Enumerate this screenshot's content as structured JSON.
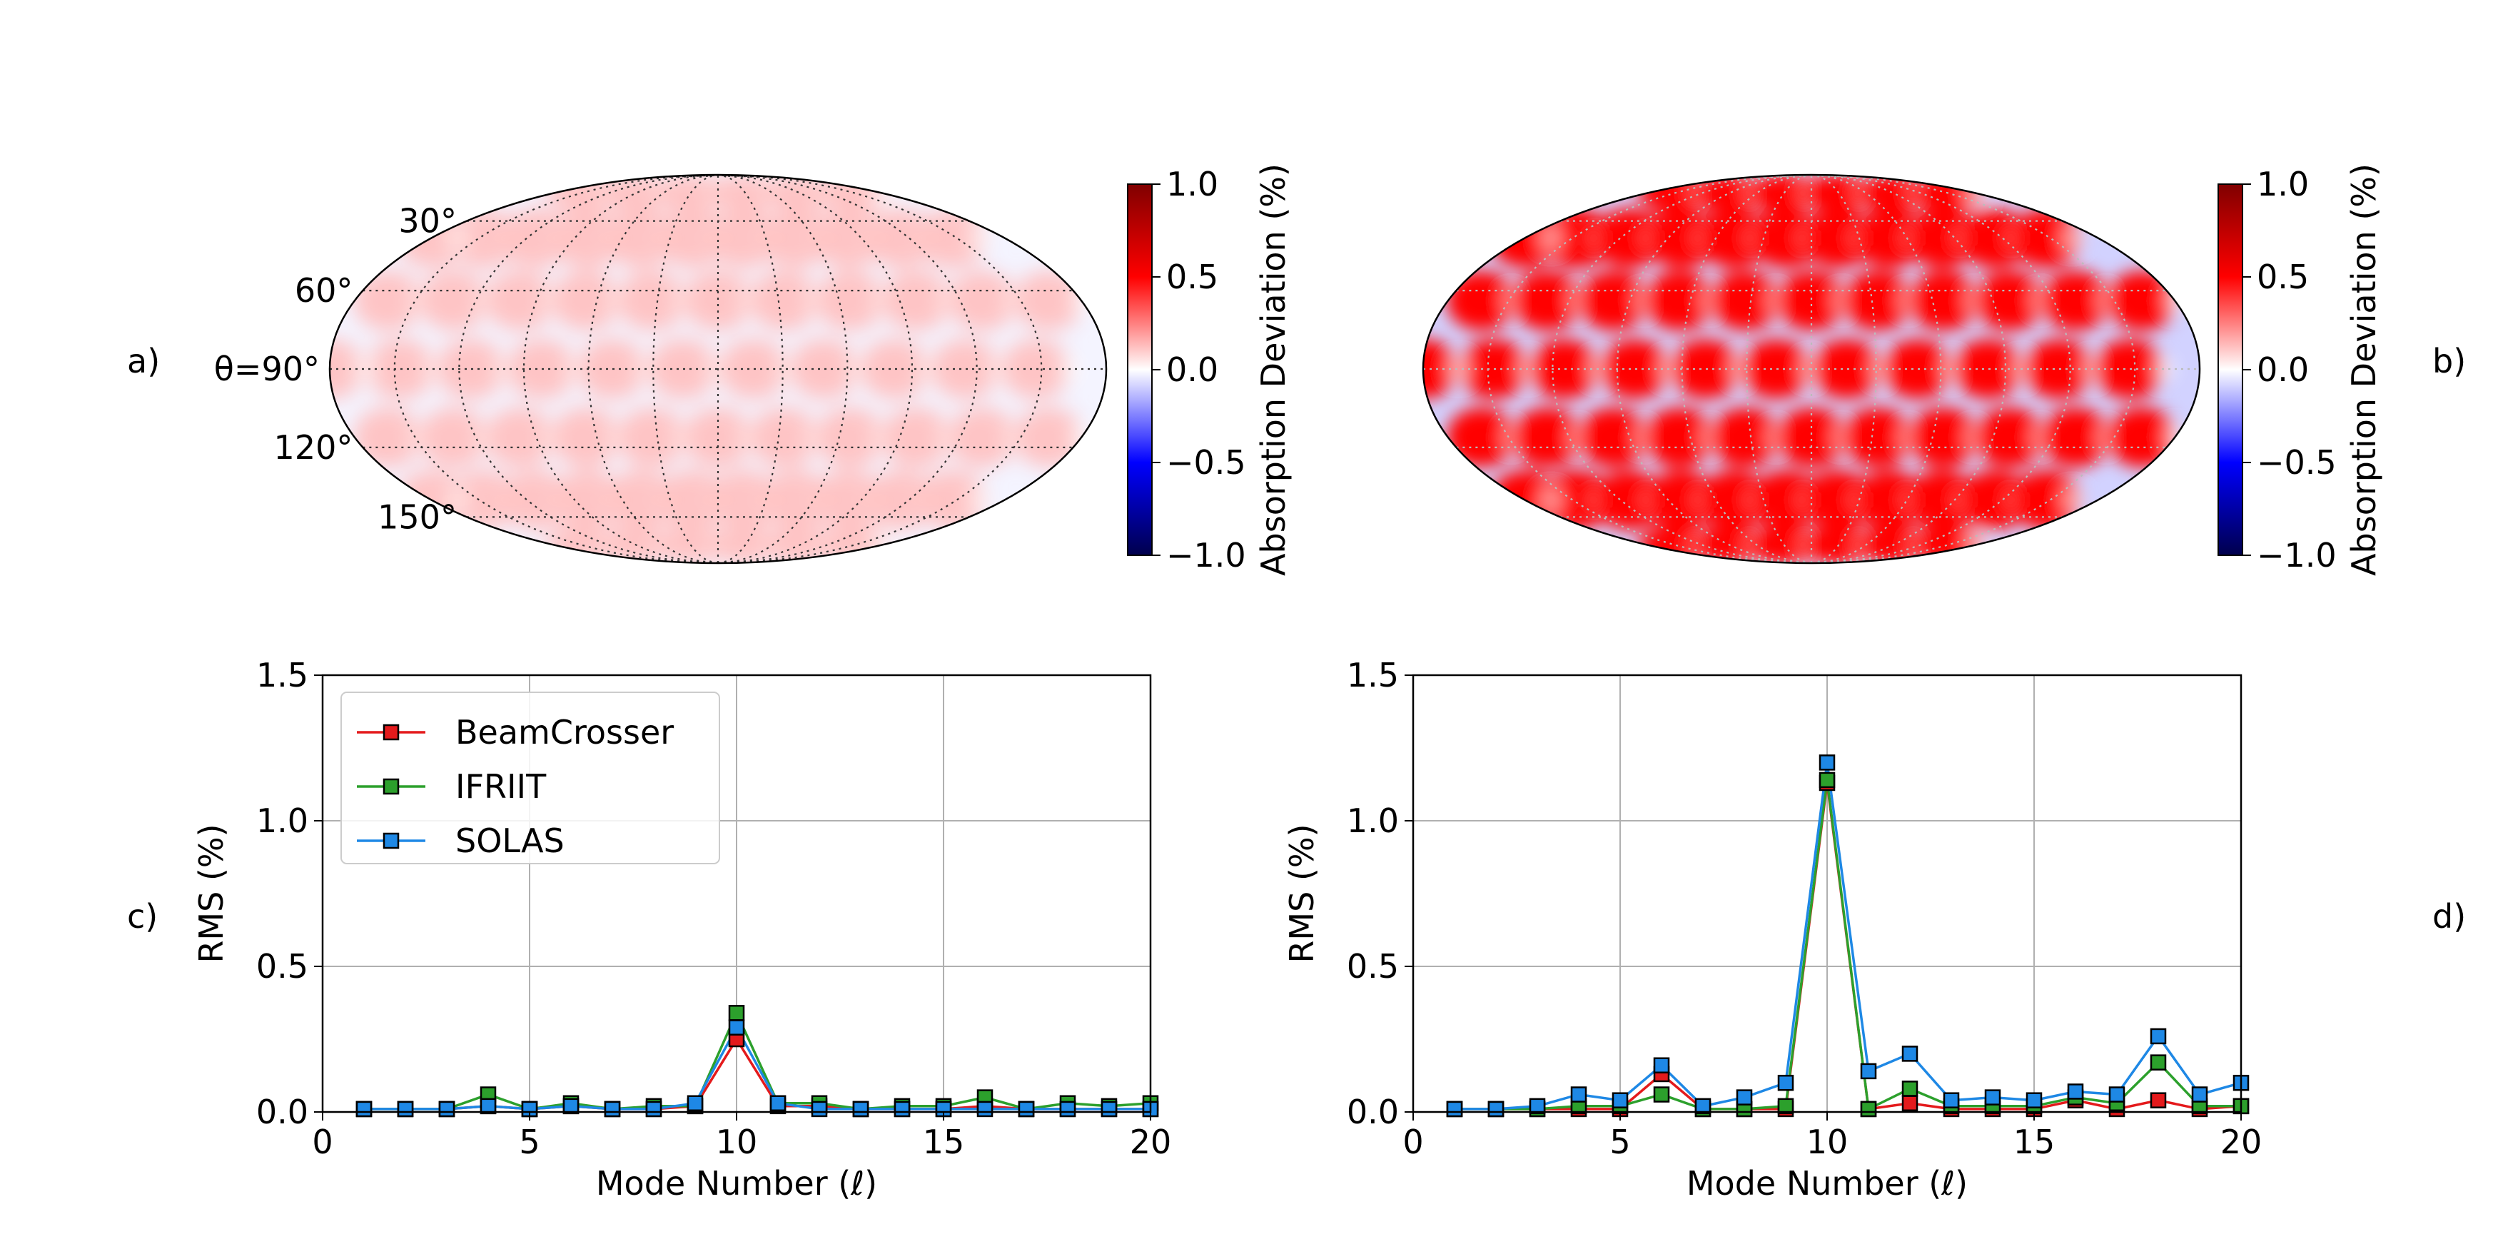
{
  "figure": {
    "panel_labels": [
      "a)",
      "b)",
      "c)",
      "d)"
    ]
  },
  "chart_data": [
    {
      "panel": "a)",
      "type": "heatmap",
      "projection": "mollweide",
      "latitude_labels": [
        "30°",
        "60°",
        "θ=90°",
        "120°",
        "150°"
      ],
      "colorbar": {
        "label": "Absorption Deviation (%)",
        "range": [
          -1.0,
          1.0
        ],
        "ticks": [
          1.0,
          0.5,
          0.0,
          -0.5,
          -1.0
        ],
        "tick_labels": [
          "1.0",
          "0.5",
          "0.0",
          "−0.5",
          "−1.0"
        ],
        "colormap": "seismic"
      },
      "amplitude": 0.25,
      "grid": true
    },
    {
      "panel": "b)",
      "type": "heatmap",
      "projection": "mollweide",
      "latitude_labels": [],
      "colorbar": {
        "label": "Absorption Deviation (%)",
        "range": [
          -1.0,
          1.0
        ],
        "ticks": [
          1.0,
          0.5,
          0.0,
          -0.5,
          -1.0
        ],
        "tick_labels": [
          "1.0",
          "0.5",
          "0.0",
          "−0.5",
          "−1.0"
        ],
        "colormap": "seismic"
      },
      "amplitude": 1.0,
      "grid": true
    },
    {
      "panel": "c)",
      "type": "line",
      "xlabel": "Mode Number (ℓ)",
      "ylabel": "RMS (%)",
      "xlim": [
        0,
        20
      ],
      "ylim": [
        0,
        1.5
      ],
      "xticks": [
        0,
        5,
        10,
        15,
        20
      ],
      "yticks": [
        0.0,
        0.5,
        1.0,
        1.5
      ],
      "ytick_labels": [
        "0.0",
        "0.5",
        "1.0",
        "1.5"
      ],
      "grid": true,
      "legend": "top-left",
      "x": [
        1,
        2,
        3,
        4,
        5,
        6,
        7,
        8,
        9,
        10,
        11,
        12,
        13,
        14,
        15,
        16,
        17,
        18,
        19,
        20
      ],
      "series": [
        {
          "name": "BeamCrosser",
          "color": "#e41a1c",
          "values": [
            0.01,
            0.01,
            0.01,
            0.02,
            0.01,
            0.02,
            0.01,
            0.01,
            0.02,
            0.25,
            0.02,
            0.02,
            0.01,
            0.01,
            0.01,
            0.02,
            0.01,
            0.01,
            0.01,
            0.01
          ]
        },
        {
          "name": "IFRIIT",
          "color": "#2ca02c",
          "values": [
            0.01,
            0.01,
            0.01,
            0.06,
            0.01,
            0.03,
            0.01,
            0.02,
            0.02,
            0.34,
            0.03,
            0.03,
            0.01,
            0.02,
            0.02,
            0.05,
            0.01,
            0.03,
            0.02,
            0.03
          ]
        },
        {
          "name": "SOLAS",
          "color": "#1e88e5",
          "values": [
            0.01,
            0.01,
            0.01,
            0.02,
            0.01,
            0.02,
            0.01,
            0.01,
            0.03,
            0.29,
            0.03,
            0.01,
            0.01,
            0.01,
            0.01,
            0.01,
            0.01,
            0.01,
            0.01,
            0.01
          ]
        }
      ]
    },
    {
      "panel": "d)",
      "type": "line",
      "xlabel": "Mode Number (ℓ)",
      "ylabel": "RMS (%)",
      "xlim": [
        0,
        20
      ],
      "ylim": [
        0,
        1.5
      ],
      "xticks": [
        0,
        5,
        10,
        15,
        20
      ],
      "yticks": [
        0.0,
        0.5,
        1.0,
        1.5
      ],
      "ytick_labels": [
        "0.0",
        "0.5",
        "1.0",
        "1.5"
      ],
      "grid": true,
      "x": [
        1,
        2,
        3,
        4,
        5,
        6,
        7,
        8,
        9,
        10,
        11,
        12,
        13,
        14,
        15,
        16,
        17,
        18,
        19,
        20
      ],
      "series": [
        {
          "name": "BeamCrosser",
          "color": "#e41a1c",
          "values": [
            0.01,
            0.01,
            0.01,
            0.01,
            0.01,
            0.13,
            0.01,
            0.01,
            0.01,
            1.13,
            0.01,
            0.03,
            0.01,
            0.01,
            0.01,
            0.04,
            0.01,
            0.04,
            0.01,
            0.02
          ]
        },
        {
          "name": "IFRIIT",
          "color": "#2ca02c",
          "values": [
            0.01,
            0.01,
            0.01,
            0.02,
            0.02,
            0.06,
            0.01,
            0.01,
            0.02,
            1.14,
            0.01,
            0.08,
            0.02,
            0.02,
            0.02,
            0.05,
            0.03,
            0.17,
            0.02,
            0.02
          ]
        },
        {
          "name": "SOLAS",
          "color": "#1e88e5",
          "values": [
            0.01,
            0.01,
            0.02,
            0.06,
            0.04,
            0.16,
            0.02,
            0.05,
            0.1,
            1.2,
            0.14,
            0.2,
            0.04,
            0.05,
            0.04,
            0.07,
            0.06,
            0.26,
            0.06,
            0.1
          ]
        }
      ]
    }
  ]
}
